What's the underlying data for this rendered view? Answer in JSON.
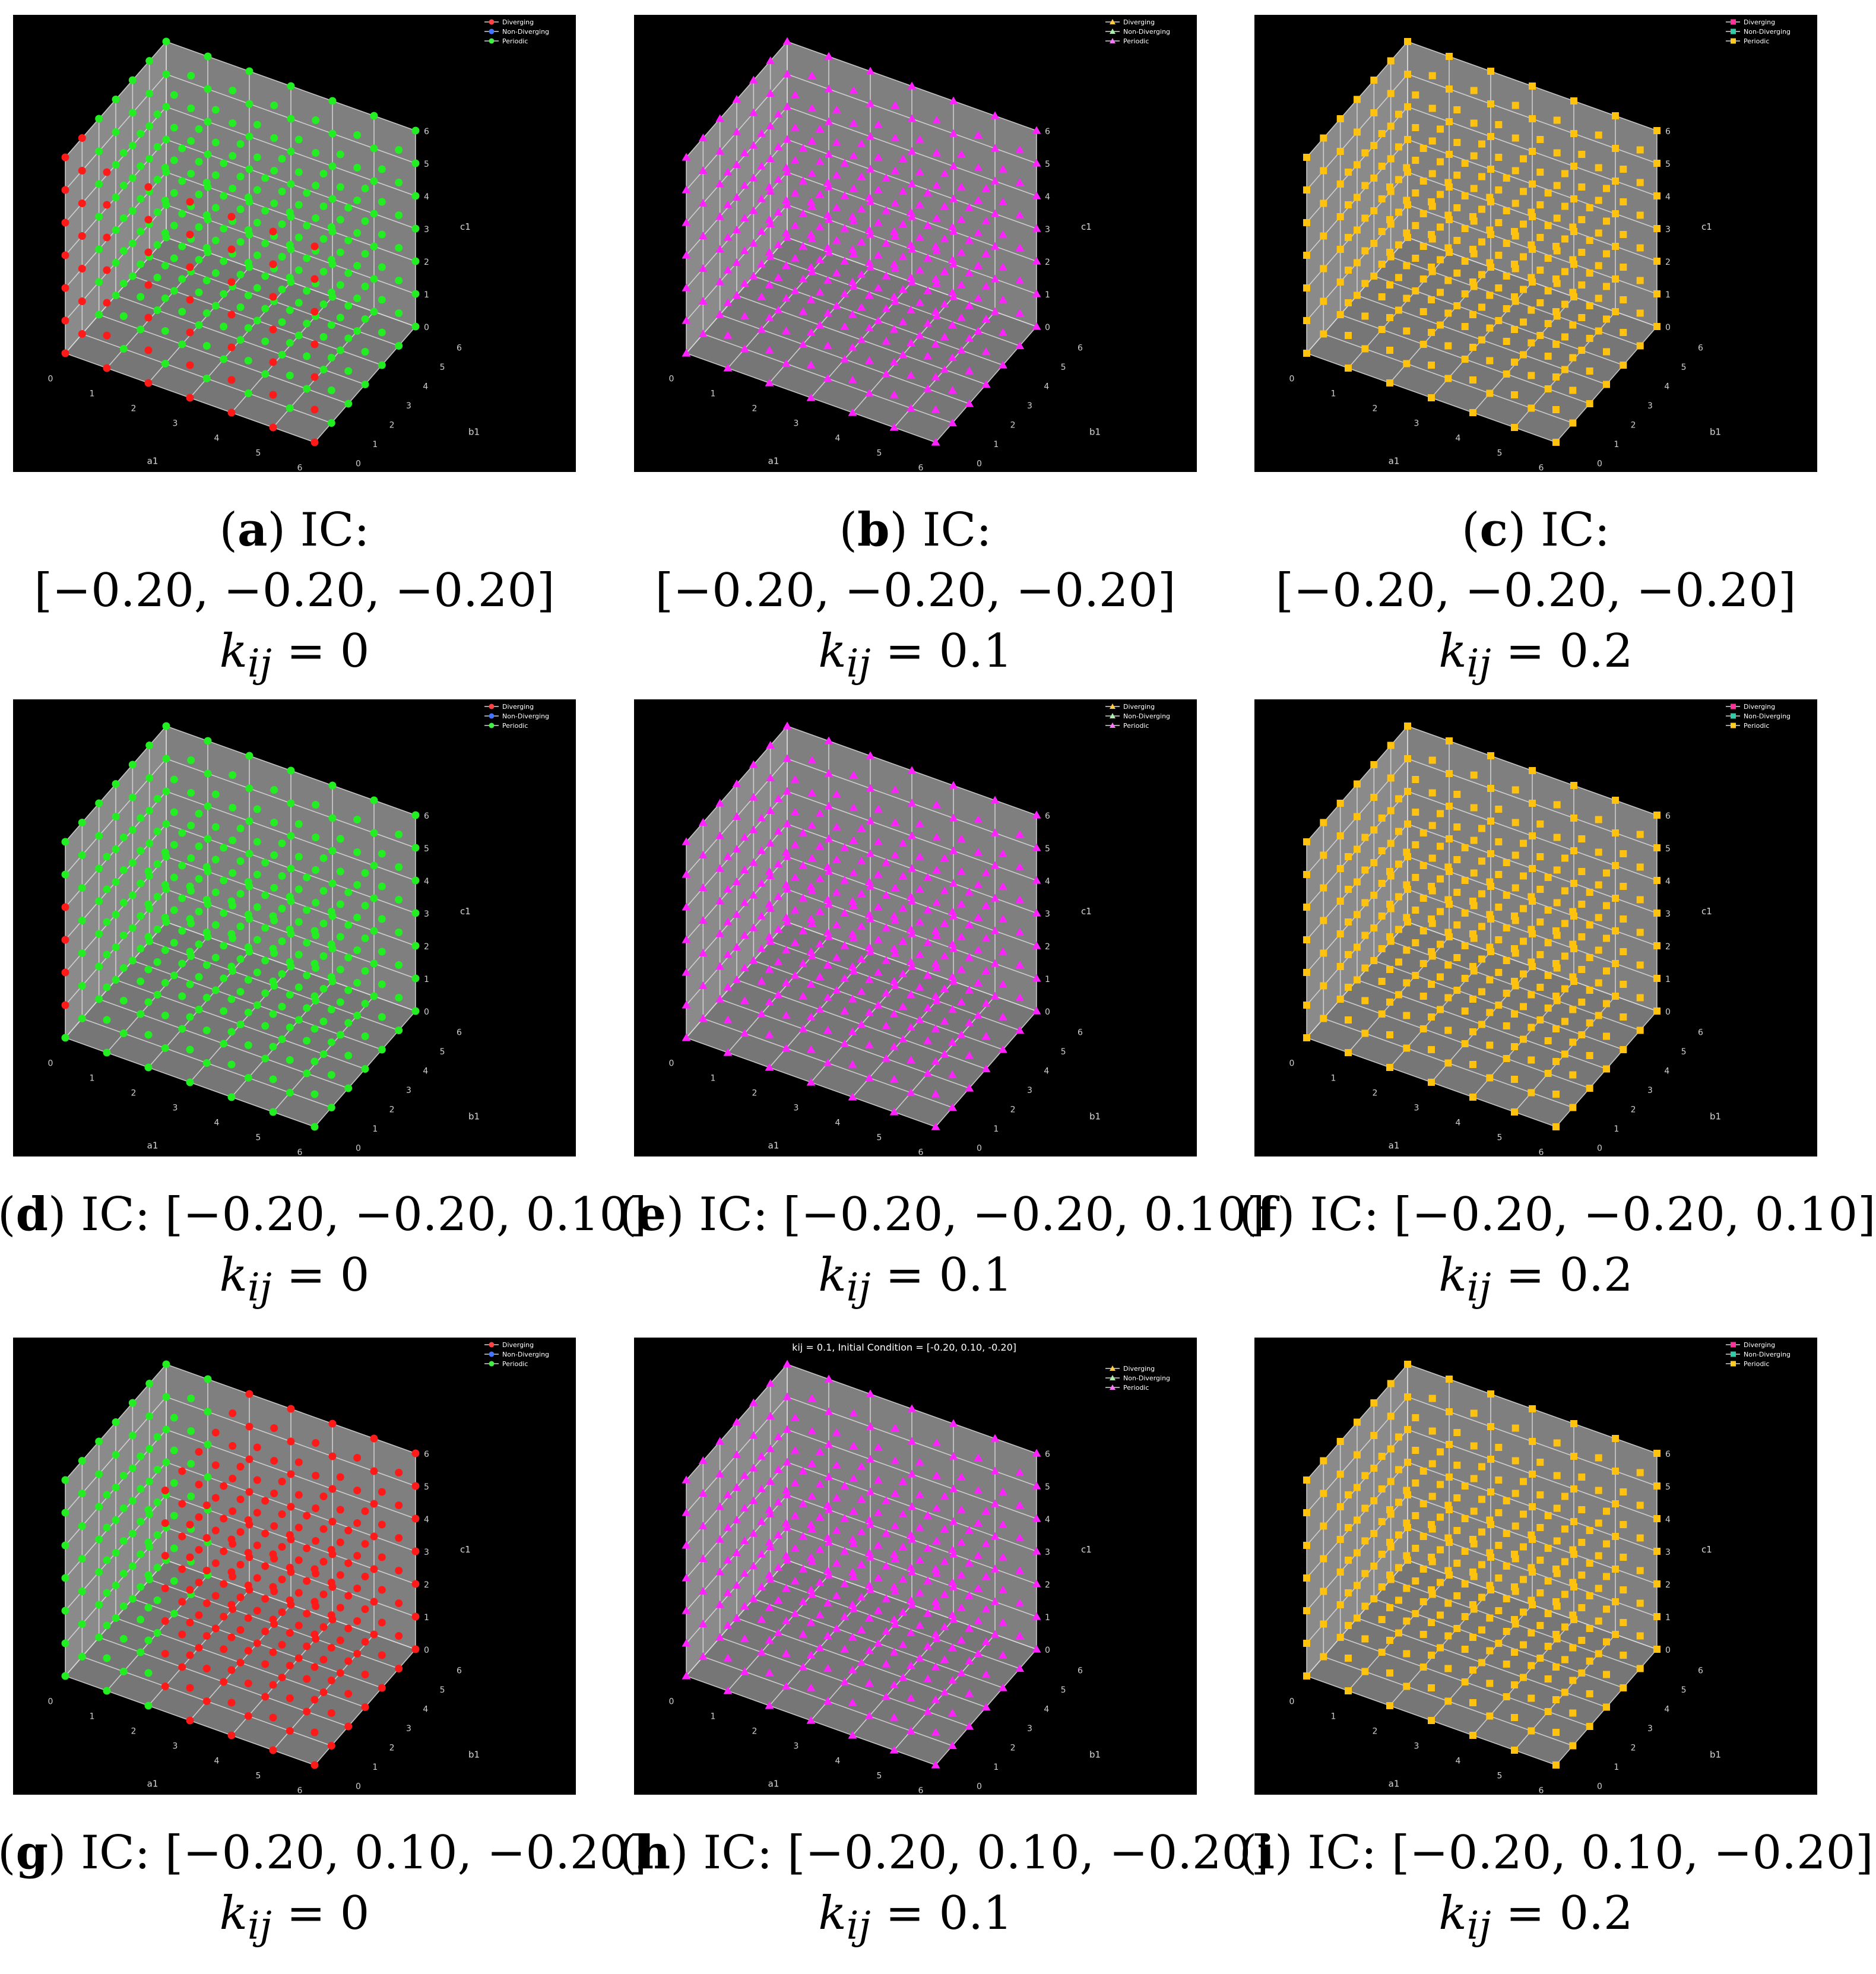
{
  "chart_data": [
    {
      "id": "a",
      "type": "scatter",
      "title": "",
      "xlabel": "a1",
      "ylabel": "b1",
      "zlabel": "c1",
      "ticks": [
        0,
        1,
        2,
        3,
        4,
        5,
        6
      ],
      "xlim": [
        0,
        6
      ],
      "ylim": [
        0,
        6
      ],
      "zlim": [
        0,
        6
      ],
      "grid": true,
      "legend_position": "top-right",
      "marker": "circle",
      "legend": [
        "Diverging",
        "Non-Diverging",
        "Periodic"
      ],
      "series": [
        {
          "name": "Diverging",
          "color": "#ff1a1a",
          "points": "red-edge-low"
        },
        {
          "name": "Periodic",
          "color": "#22ee22",
          "points": "rest"
        }
      ],
      "caption": {
        "label": "(a)",
        "lines": [
          "IC:",
          "[−0.20, −0.20, −0.20]",
          "k_ij = 0"
        ]
      }
    },
    {
      "id": "b",
      "type": "scatter",
      "title": "",
      "xlabel": "a1",
      "ylabel": "b1",
      "zlabel": "c1",
      "ticks": [
        0,
        1,
        2,
        3,
        4,
        5,
        6
      ],
      "xlim": [
        0,
        6
      ],
      "ylim": [
        0,
        6
      ],
      "zlim": [
        0,
        6
      ],
      "grid": true,
      "legend_position": "top-right",
      "marker": "triangle",
      "legend": [
        "Diverging",
        "Non-Diverging",
        "Periodic"
      ],
      "series": [
        {
          "name": "Periodic",
          "color": "#ff22ff",
          "points": "all"
        }
      ],
      "caption": {
        "label": "(b)",
        "lines": [
          "IC:",
          "[−0.20, −0.20, −0.20]",
          "k_ij = 0.1"
        ]
      }
    },
    {
      "id": "c",
      "type": "scatter",
      "title": "",
      "xlabel": "a1",
      "ylabel": "b1",
      "zlabel": "c1",
      "ticks": [
        0,
        1,
        2,
        3,
        4,
        5,
        6
      ],
      "xlim": [
        0,
        6
      ],
      "ylim": [
        0,
        6
      ],
      "zlim": [
        0,
        6
      ],
      "grid": true,
      "legend_position": "top-right",
      "marker": "square",
      "legend": [
        "Diverging",
        "Non-Diverging",
        "Periodic"
      ],
      "series": [
        {
          "name": "Periodic",
          "color": "#ffc20e",
          "points": "all"
        }
      ],
      "caption": {
        "label": "(c)",
        "lines": [
          "IC:",
          "[−0.20, −0.20, −0.20]",
          "k_ij = 0.2"
        ]
      }
    },
    {
      "id": "d",
      "type": "scatter",
      "title": "",
      "xlabel": "a1",
      "ylabel": "b1",
      "zlabel": "c1",
      "ticks": [
        0,
        1,
        2,
        3,
        4,
        5,
        6
      ],
      "xlim": [
        0,
        6
      ],
      "ylim": [
        0,
        6
      ],
      "zlim": [
        0,
        6
      ],
      "grid": true,
      "legend_position": "top-right",
      "marker": "circle",
      "legend": [
        "Diverging",
        "Non-Diverging",
        "Periodic"
      ],
      "series": [
        {
          "name": "Diverging",
          "color": "#ff1a1a",
          "points": "red-few"
        },
        {
          "name": "Periodic",
          "color": "#22ee22",
          "points": "rest"
        }
      ],
      "caption": {
        "label": "(d)",
        "lines": [
          "IC: [−0.20, −0.20, 0.10]",
          "k_ij = 0"
        ]
      }
    },
    {
      "id": "e",
      "type": "scatter",
      "title": "",
      "xlabel": "a1",
      "ylabel": "b1",
      "zlabel": "c1",
      "ticks": [
        0,
        1,
        2,
        3,
        4,
        5,
        6
      ],
      "xlim": [
        0,
        6
      ],
      "ylim": [
        0,
        6
      ],
      "zlim": [
        0,
        6
      ],
      "grid": true,
      "legend_position": "top-right",
      "marker": "triangle",
      "legend": [
        "Diverging",
        "Non-Diverging",
        "Periodic"
      ],
      "series": [
        {
          "name": "Periodic",
          "color": "#ff22ff",
          "points": "all"
        }
      ],
      "caption": {
        "label": "(e)",
        "lines": [
          "IC: [−0.20, −0.20, 0.10]",
          "k_ij = 0.1"
        ]
      }
    },
    {
      "id": "f",
      "type": "scatter",
      "title": "",
      "xlabel": "a1",
      "ylabel": "b1",
      "zlabel": "c1",
      "ticks": [
        0,
        1,
        2,
        3,
        4,
        5,
        6
      ],
      "xlim": [
        0,
        6
      ],
      "ylim": [
        0,
        6
      ],
      "zlim": [
        0,
        6
      ],
      "grid": true,
      "legend_position": "top-right",
      "marker": "square",
      "legend": [
        "Diverging",
        "Non-Diverging",
        "Periodic"
      ],
      "series": [
        {
          "name": "Periodic",
          "color": "#ffc20e",
          "points": "all"
        }
      ],
      "caption": {
        "label": "(f)",
        "lines": [
          "IC: [−0.20, −0.20, 0.10]",
          "k_ij = 0.2"
        ]
      }
    },
    {
      "id": "g",
      "type": "scatter",
      "title": "",
      "xlabel": "a1",
      "ylabel": "b1",
      "zlabel": "c1",
      "ticks": [
        0,
        1,
        2,
        3,
        4,
        5,
        6
      ],
      "xlim": [
        0,
        6
      ],
      "ylim": [
        0,
        6
      ],
      "zlim": [
        0,
        6
      ],
      "grid": true,
      "legend_position": "top-right",
      "marker": "circle",
      "legend": [
        "Diverging",
        "Non-Diverging",
        "Periodic"
      ],
      "series": [
        {
          "name": "Diverging",
          "color": "#ff1a1a",
          "points": "red-majority"
        },
        {
          "name": "Periodic",
          "color": "#22ee22",
          "points": "rest"
        }
      ],
      "caption": {
        "label": "(g)",
        "lines": [
          "IC: [−0.20, 0.10, −0.20]",
          "k_ij = 0"
        ]
      }
    },
    {
      "id": "h",
      "type": "scatter",
      "title": "kij = 0.1, Initial Condition = [-0.20, 0.10, -0.20]",
      "xlabel": "a1",
      "ylabel": "b1",
      "zlabel": "c1",
      "ticks": [
        0,
        1,
        2,
        3,
        4,
        5,
        6
      ],
      "xlim": [
        0,
        6
      ],
      "ylim": [
        0,
        6
      ],
      "zlim": [
        0,
        6
      ],
      "grid": true,
      "legend_position": "top-right",
      "marker": "triangle",
      "legend": [
        "Diverging",
        "Non-Diverging",
        "Periodic"
      ],
      "series": [
        {
          "name": "Periodic",
          "color": "#ff22ff",
          "points": "all"
        }
      ],
      "caption": {
        "label": "(h)",
        "lines": [
          "IC: [−0.20, 0.10, −0.20]",
          "k_ij = 0.1"
        ]
      }
    },
    {
      "id": "i",
      "type": "scatter",
      "title": "",
      "xlabel": "a1",
      "ylabel": "b1",
      "zlabel": "c1",
      "ticks": [
        0,
        1,
        2,
        3,
        4,
        5,
        6
      ],
      "xlim": [
        0,
        6
      ],
      "ylim": [
        0,
        6
      ],
      "zlim": [
        0,
        6
      ],
      "grid": true,
      "legend_position": "top-right",
      "marker": "square",
      "legend": [
        "Diverging",
        "Non-Diverging",
        "Periodic"
      ],
      "series": [
        {
          "name": "Periodic",
          "color": "#ffc20e",
          "points": "all"
        }
      ],
      "caption": {
        "label": "(i)",
        "lines": [
          "IC: [−0.20, 0.10, −0.20]",
          "k_ij = 0.2"
        ]
      }
    }
  ],
  "legend_colors": {
    "circle": [
      "#ff4444",
      "#4477ff",
      "#44ee44"
    ],
    "triangle": [
      "#ffcc44",
      "#aaeeaa",
      "#ff77ff"
    ],
    "square": [
      "#ff3399",
      "#33ccaa",
      "#ffcc22"
    ]
  }
}
